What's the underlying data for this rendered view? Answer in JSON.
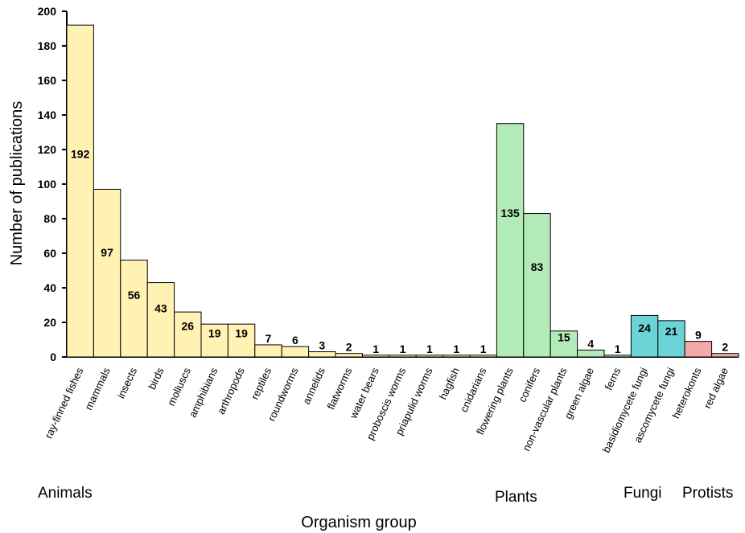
{
  "chart_data": {
    "type": "bar",
    "xlabel": "Organism group",
    "ylabel": "Number of publications",
    "ylim": [
      0,
      200
    ],
    "yticks": [
      0,
      20,
      40,
      60,
      80,
      100,
      120,
      140,
      160,
      180,
      200
    ],
    "grid": false,
    "categories": [
      "ray-finned fishes",
      "mammals",
      "insects",
      "birds",
      "molluscs",
      "amphibians",
      "arthropods",
      "reptiles",
      "roundworms",
      "annelids",
      "flatworms",
      "water bears",
      "proboscis worms",
      "priapulid worms",
      "hagfish",
      "cnidarians",
      "flowering plants",
      "conifers",
      "non-vascular plants",
      "green algae",
      "ferns",
      "basidiomycete fungi",
      "ascomycete fungi",
      "heterokonts",
      "red algae"
    ],
    "values": [
      192,
      97,
      56,
      43,
      26,
      19,
      19,
      7,
      6,
      3,
      2,
      1,
      1,
      1,
      1,
      1,
      135,
      83,
      15,
      4,
      1,
      24,
      21,
      9,
      2
    ],
    "groups": [
      {
        "label": "Animals",
        "color": "#fff2b3",
        "categories": [
          "ray-finned fishes",
          "mammals",
          "insects",
          "birds",
          "molluscs",
          "amphibians",
          "arthropods",
          "reptiles",
          "roundworms",
          "annelids",
          "flatworms",
          "water bears",
          "proboscis worms",
          "priapulid worms",
          "hagfish",
          "cnidarians"
        ]
      },
      {
        "label": "Plants",
        "color": "#b3ebb8",
        "categories": [
          "flowering plants",
          "conifers",
          "non-vascular plants",
          "green algae",
          "ferns"
        ]
      },
      {
        "label": "Fungi",
        "color": "#6bd2d6",
        "categories": [
          "basidiomycete fungi",
          "ascomycete fungi"
        ]
      },
      {
        "label": "Protists",
        "color": "#f4a9a8",
        "categories": [
          "heterokonts",
          "red algae"
        ]
      }
    ]
  }
}
